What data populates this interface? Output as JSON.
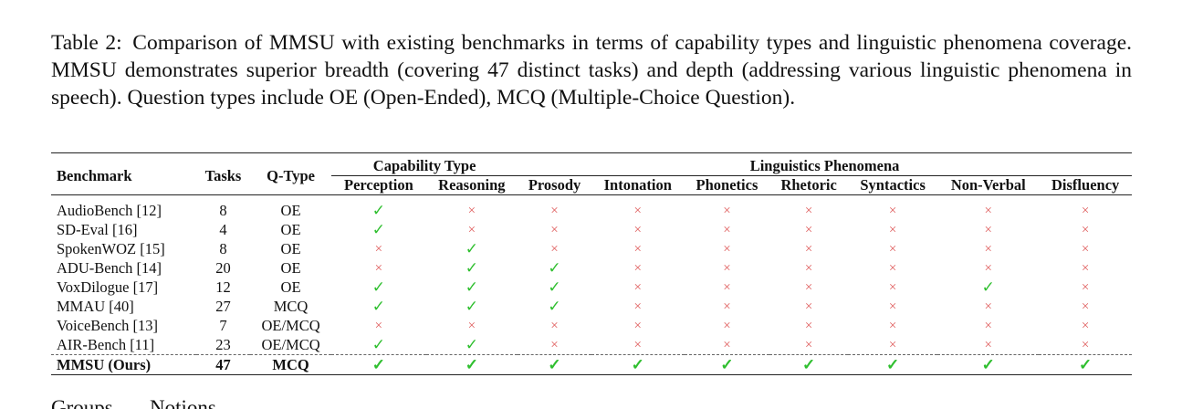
{
  "caption": {
    "label": "Table 2:",
    "text": "Comparison of MMSU with existing benchmarks in terms of capability types and linguistic phenomena coverage. MMSU demonstrates superior breadth (covering 47 distinct tasks) and depth (addressing various linguistic phenomena in speech). Question types include OE (Open-Ended), MCQ (Multiple-Choice Question)."
  },
  "table": {
    "headers": {
      "benchmark": "Benchmark",
      "tasks": "Tasks",
      "qtype": "Q-Type",
      "capability_group": "Capability Type",
      "linguistic_group": "Linguistics Phenomena",
      "capability_cols": [
        "Perception",
        "Reasoning"
      ],
      "linguistic_cols": [
        "Prosody",
        "Intonation",
        "Phonetics",
        "Rhetoric",
        "Syntactics",
        "Non-Verbal",
        "Disfluency"
      ]
    },
    "symbols": {
      "check": "✓",
      "cross": "×",
      "check_color": "#2fbf2f",
      "cross_color": "#e06060"
    },
    "rows": [
      {
        "benchmark": "AudioBench [12]",
        "tasks": "8",
        "qtype": "OE",
        "marks": [
          1,
          0,
          0,
          0,
          0,
          0,
          0,
          0,
          0
        ]
      },
      {
        "benchmark": "SD-Eval [16]",
        "tasks": "4",
        "qtype": "OE",
        "marks": [
          1,
          0,
          0,
          0,
          0,
          0,
          0,
          0,
          0
        ]
      },
      {
        "benchmark": "SpokenWOZ [15]",
        "tasks": "8",
        "qtype": "OE",
        "marks": [
          0,
          1,
          0,
          0,
          0,
          0,
          0,
          0,
          0
        ]
      },
      {
        "benchmark": "ADU-Bench [14]",
        "tasks": "20",
        "qtype": "OE",
        "marks": [
          0,
          1,
          1,
          0,
          0,
          0,
          0,
          0,
          0
        ]
      },
      {
        "benchmark": "VoxDilogue [17]",
        "tasks": "12",
        "qtype": "OE",
        "marks": [
          1,
          1,
          1,
          0,
          0,
          0,
          0,
          1,
          0
        ]
      },
      {
        "benchmark": "MMAU [40]",
        "tasks": "27",
        "qtype": "MCQ",
        "marks": [
          1,
          1,
          1,
          0,
          0,
          0,
          0,
          0,
          0
        ]
      },
      {
        "benchmark": "VoiceBench [13]",
        "tasks": "7",
        "qtype": "OE/MCQ",
        "marks": [
          0,
          0,
          0,
          0,
          0,
          0,
          0,
          0,
          0
        ]
      },
      {
        "benchmark": "AIR-Bench [11]",
        "tasks": "23",
        "qtype": "OE/MCQ",
        "marks": [
          1,
          1,
          0,
          0,
          0,
          0,
          0,
          0,
          0
        ]
      },
      {
        "benchmark": "MMSU (Ours)",
        "tasks": "47",
        "qtype": "MCQ",
        "marks": [
          1,
          1,
          1,
          1,
          1,
          1,
          1,
          1,
          1
        ],
        "ours": true
      }
    ]
  },
  "partial_next_line": "Groups . . . Notions"
}
